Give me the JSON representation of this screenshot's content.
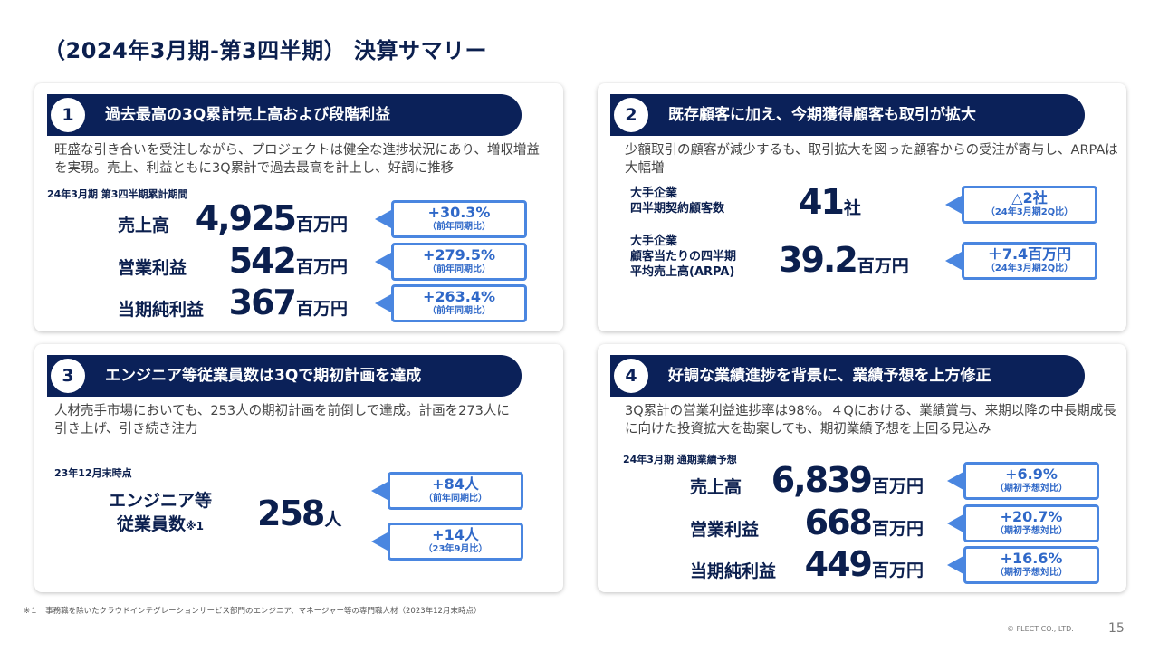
{
  "title": "（2024年3月期-第3四半期） 決算サマリー",
  "sections": [
    {
      "num": "1",
      "title": "過去最高の3Q累計売上高および段階利益",
      "desc": "旺盛な引き合いを受注しながら、プロジェクトは健全な進捗状況にあり、増収増益を実現。売上、利益ともに3Q累計で過去最高を計上し、好調に推移",
      "period": "24年3月期 第3四半期累計期間",
      "metrics": [
        {
          "label": "売上高",
          "value": "4,925",
          "unit": "百万円",
          "change": "+30.3%",
          "note": "（前年同期比）"
        },
        {
          "label": "営業利益",
          "value": "542",
          "unit": "百万円",
          "change": "+279.5%",
          "note": "（前年同期比）"
        },
        {
          "label": "当期純利益",
          "value": "367",
          "unit": "百万円",
          "change": "+263.4%",
          "note": "（前年同期比）"
        }
      ]
    },
    {
      "num": "2",
      "title": "既存顧客に加え、今期獲得顧客も取引が拡大",
      "desc": "少額取引の顧客が減少するも、取引拡大を図った顧客からの受注が寄与し、ARPAは大幅増",
      "metrics": [
        {
          "label_line1": "大手企業",
          "label_line2": "四半期契約顧客数",
          "value": "41",
          "unit": "社",
          "change": "△2社",
          "note": "（24年3月期2Q比）"
        },
        {
          "label_line1": "大手企業",
          "label_line2": "顧客当たりの四半期",
          "label_line3": "平均売上高(ARPA)",
          "value": "39.2",
          "unit": "百万円",
          "change": "＋7.4百万円",
          "note": "（24年3月期2Q比）"
        }
      ]
    },
    {
      "num": "3",
      "title": "エンジニア等従業員数は3Qで期初計画を達成",
      "desc": "人材売手市場においても、253人の期初計画を前倒しで達成。計画を273人に引き上げ、引き続き注力",
      "period": "23年12月末時点",
      "label_line1": "エンジニア等",
      "label_line2": "従業員数",
      "label_mark": "※1",
      "value": "258",
      "unit": "人",
      "changes": [
        {
          "change": "+84人",
          "note": "（前年同期比）"
        },
        {
          "change": "+14人",
          "note": "（23年9月比）"
        }
      ]
    },
    {
      "num": "4",
      "title": "好調な業績進捗を背景に、業績予想を上方修正",
      "desc": "3Q累計の営業利益進捗率は98%。４Qにおける、業績賞与、来期以降の中長期成長に向けた投資拡大を勘案しても、期初業績予想を上回る見込み",
      "period": "24年3月期 通期業績予想",
      "metrics": [
        {
          "label": "売上高",
          "value": "6,839",
          "unit": "百万円",
          "change": "+6.9%",
          "note": "（期初予想対比）"
        },
        {
          "label": "営業利益",
          "value": "668",
          "unit": "百万円",
          "change": "+20.7%",
          "note": "（期初予想対比）"
        },
        {
          "label": "当期純利益",
          "value": "449",
          "unit": "百万円",
          "change": "+16.6%",
          "note": "（期初予想対比）"
        }
      ]
    }
  ],
  "footnote": "※１　事務職を除いたクラウドインテグレーションサービス部門のエンジニア、マネージャー等の専門職人材（2023年12月末時点）",
  "copyright": "© FLECT CO., LTD.",
  "page_number": "15"
}
